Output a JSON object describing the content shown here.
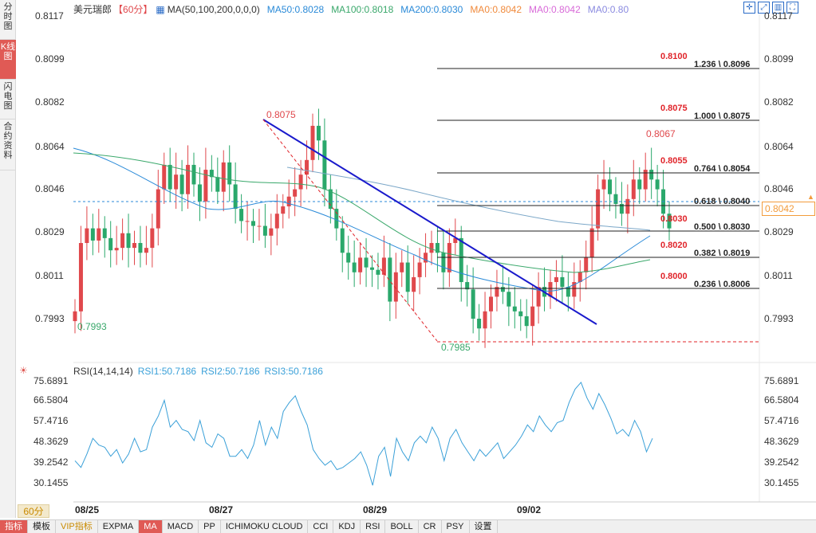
{
  "sidebar": {
    "tabs": [
      {
        "label": "分时图"
      },
      {
        "label": "K线图"
      },
      {
        "label": "闪电图"
      },
      {
        "label": "合约资料"
      }
    ]
  },
  "legend": {
    "symbol": "美元瑞郎",
    "period": "【60分】",
    "ma_label": "MA(50,100,200,0,0,0)",
    "ma50": "MA50:0.8028",
    "ma100": "MA100:0.8018",
    "ma200": "MA200:0.8030",
    "ma0a": "MA0:0.8042",
    "ma0b": "MA0:0.8042",
    "ma0c": "MA0:0.80"
  },
  "colors": {
    "up": "#e0484c",
    "down": "#2aa86b",
    "ma50": "#2a8ad8",
    "ma100": "#3aa86b",
    "ma200": "#7ba7c8",
    "trend": "#1a1acc",
    "fib_red": "#e0242a"
  },
  "price_axis": {
    "ticks": [
      "0.8117",
      "0.8099",
      "0.8082",
      "0.8064",
      "0.8046",
      "0.8029",
      "0.8011",
      "0.7993"
    ],
    "current": "0.8042"
  },
  "chart_annotations": {
    "high_label": "0.8075",
    "low_label": "0.7985",
    "start_label": "0.7993",
    "recent_high": "0.8067"
  },
  "fib_levels": [
    {
      "price_label": "0.8100",
      "ratio_label": "1.236 \\ 0.8096"
    },
    {
      "price_label": "0.8075",
      "ratio_label": "1.000 \\ 0.8075"
    },
    {
      "price_label": "0.8055",
      "ratio_label": "0.764 \\ 0.8054"
    },
    {
      "price_label": "",
      "ratio_label": "0.618 \\ 0.8040"
    },
    {
      "price_label": "0.8030",
      "ratio_label": "0.500 \\ 0.8030"
    },
    {
      "price_label": "0.8020",
      "ratio_label": "0.382 \\ 0.8019"
    },
    {
      "price_label": "0.8000",
      "ratio_label": "0.236 \\ 0.8006"
    }
  ],
  "rsi": {
    "title": "RSI(14,14,14)",
    "rsi1": "RSI1:50.7186",
    "rsi2": "RSI2:50.7186",
    "rsi3": "RSI3:50.7186",
    "ticks": [
      "75.6891",
      "66.5804",
      "57.4716",
      "48.3629",
      "39.2542",
      "30.1455"
    ]
  },
  "x_axis": {
    "period_button": "60分",
    "dates": [
      "08/25",
      "08/27",
      "08/29",
      "09/02"
    ]
  },
  "bottom_tabs": [
    "指标",
    "模板",
    "VIP指标",
    "EXPMA",
    "MA",
    "MACD",
    "PP",
    "ICHIMOKU CLOUD",
    "CCI",
    "KDJ",
    "RSI",
    "BOLL",
    "CR",
    "PSY",
    "设置"
  ],
  "chart_data": {
    "type": "candlestick",
    "y_range": [
      0.7985,
      0.8117
    ],
    "rsi_range": [
      30.1455,
      75.6891
    ],
    "rsi_values": [
      40,
      37,
      43,
      50,
      47,
      46,
      42,
      45,
      39,
      43,
      50,
      44,
      45,
      55,
      60,
      67,
      55,
      58,
      54,
      53,
      49,
      58,
      48,
      46,
      52,
      50,
      42,
      42,
      45,
      41,
      47,
      58,
      47,
      55,
      50,
      62,
      66,
      69,
      62,
      56,
      45,
      41,
      38,
      40,
      36,
      37,
      39,
      41,
      44,
      38,
      29,
      42,
      46,
      33,
      50,
      44,
      40,
      48,
      51,
      48,
      55,
      50,
      40,
      50,
      54,
      48,
      44,
      40,
      45,
      42,
      45,
      48,
      41,
      44,
      47,
      51,
      56,
      53,
      60,
      56,
      53,
      57,
      58,
      66,
      72,
      75,
      68,
      63,
      70,
      65,
      59,
      52,
      54,
      51,
      58,
      53,
      44,
      50
    ]
  }
}
